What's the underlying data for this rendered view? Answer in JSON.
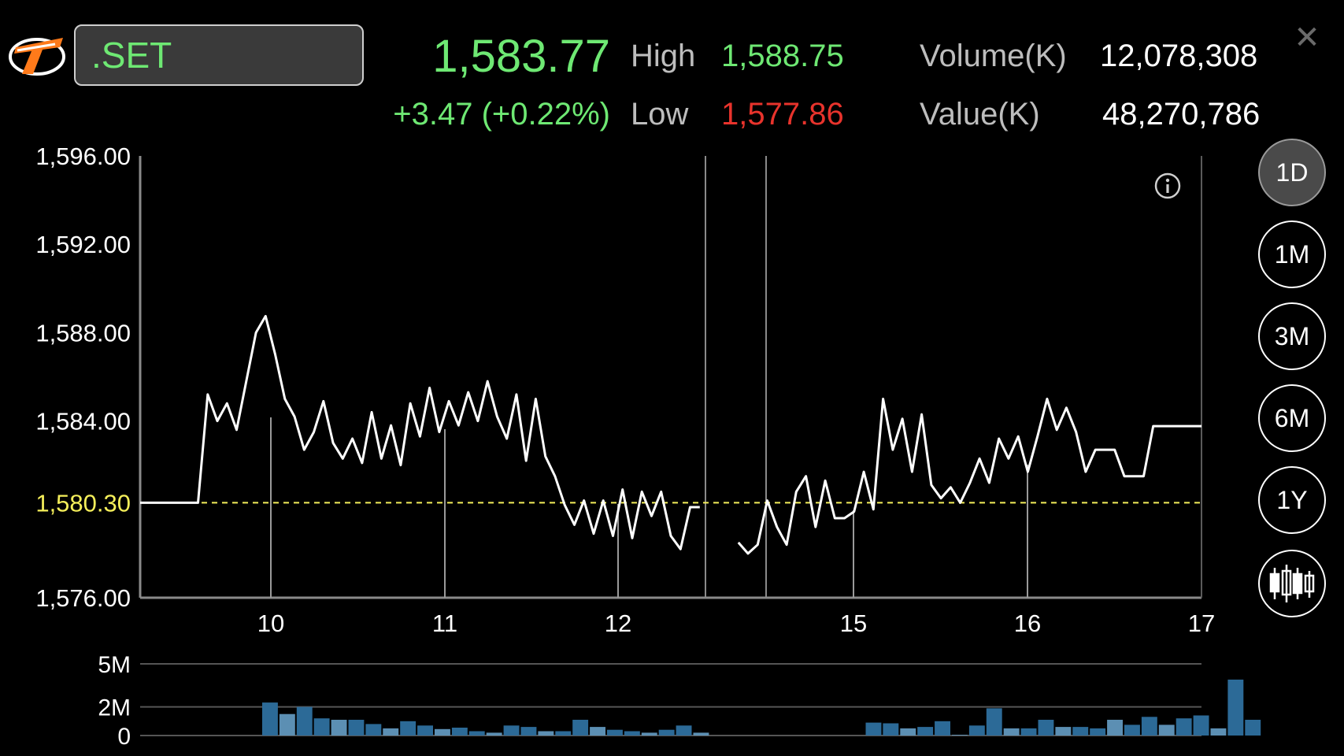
{
  "header": {
    "symbol": ".SET",
    "last_price": "1,583.77",
    "change": "+3.47 (+0.22%)",
    "high_label": "High",
    "high_value": "1,588.75",
    "low_label": "Low",
    "low_value": "1,577.86",
    "volume_label": "Volume(K)",
    "volume_value": "12,078,308",
    "value_label": "Value(K)",
    "value_value": "48,270,786",
    "close_icon": "close-icon",
    "logo_icon": "streaming-logo-icon",
    "info_icon": "info-icon"
  },
  "periods": [
    {
      "label": "1D",
      "active": true
    },
    {
      "label": "1M",
      "active": false
    },
    {
      "label": "3M",
      "active": false
    },
    {
      "label": "6M",
      "active": false
    },
    {
      "label": "1Y",
      "active": false
    }
  ],
  "candlestick_icon": "candlestick-chart-icon",
  "colors": {
    "up": "#6ee873",
    "down": "#e8332c",
    "reference": "#f4ee5a",
    "volume_bar": "#2c6a97",
    "volume_bar_light": "#5c8fb3",
    "line": "#ffffff",
    "axis": "#8a8a8a"
  },
  "chart_data": [
    {
      "type": "line",
      "title": "",
      "y_tick_labels": [
        "1,596.00",
        "1,592.00",
        "1,588.00",
        "1,584.00",
        "1,576.00"
      ],
      "ylim": [
        1576,
        1596
      ],
      "reference_line": {
        "label": "1,580.30",
        "value": 1580.3,
        "style": "dashed"
      },
      "x_tick_labels": [
        "10",
        "11",
        "12",
        "15",
        "16",
        "17"
      ],
      "grid": false,
      "series": [
        {
          "values": [
            1580.3,
            1580.3,
            1580.3,
            1580.3,
            1580.3,
            1580.3,
            1580.3,
            1585.2,
            1584.0,
            1584.8,
            1583.6,
            1585.8,
            1588.0,
            1588.75,
            1587.0,
            1585.0,
            1584.2,
            1582.7,
            1583.5,
            1584.9,
            1583.0,
            1582.3,
            1583.2,
            1582.1,
            1584.4,
            1582.3,
            1583.8,
            1582.0,
            1584.8,
            1583.3,
            1585.5,
            1583.5,
            1584.9,
            1583.8,
            1585.3,
            1584.0,
            1585.8,
            1584.2,
            1583.2,
            1585.2,
            1582.2,
            1585.0,
            1582.4,
            1581.5,
            1580.2,
            1579.3,
            1580.4,
            1578.9,
            1580.4,
            1578.8,
            1580.9,
            1578.7,
            1580.8,
            1579.7,
            1580.8,
            1578.8,
            1578.2,
            1580.1,
            1580.1,
            null,
            null,
            null,
            1578.5,
            1578.0,
            1578.4,
            1580.4,
            1579.2,
            1578.4,
            1580.8,
            1581.5,
            1579.2,
            1581.3,
            1579.6,
            1579.6,
            1579.9,
            1581.7,
            1580.0,
            1585.0,
            1582.7,
            1584.1,
            1581.7,
            1584.3,
            1581.1,
            1580.5,
            1581.0,
            1580.3,
            1581.2,
            1582.3,
            1581.2,
            1583.2,
            1582.3,
            1583.3,
            1581.7,
            1583.3,
            1585.0,
            1583.6,
            1584.6,
            1583.5,
            1581.7,
            1582.7,
            1582.7,
            1582.7,
            1581.5,
            1581.5,
            1581.5,
            1583.77,
            1583.77,
            1583.77,
            1583.77,
            1583.77,
            1583.77
          ]
        }
      ]
    },
    {
      "type": "bar",
      "title": "",
      "y_tick_labels": [
        "5M",
        "2M",
        "0"
      ],
      "ylim": [
        0,
        5
      ],
      "values": [
        2.3,
        1.5,
        2.0,
        1.2,
        1.1,
        1.1,
        0.8,
        0.5,
        1.0,
        0.7,
        0.45,
        0.55,
        0.3,
        0.2,
        0.7,
        0.6,
        0.3,
        0.3,
        1.1,
        0.6,
        0.4,
        0.3,
        0.2,
        0.4,
        0.7,
        0.2,
        null,
        null,
        null,
        null,
        null,
        null,
        null,
        null,
        null,
        0.9,
        0.85,
        0.5,
        0.6,
        1.0,
        0.05,
        0.7,
        1.9,
        0.5,
        0.5,
        1.1,
        0.6,
        0.6,
        0.5,
        1.1,
        0.75,
        1.3,
        0.75,
        1.2,
        1.4,
        0.5,
        3.9,
        1.1
      ]
    }
  ]
}
